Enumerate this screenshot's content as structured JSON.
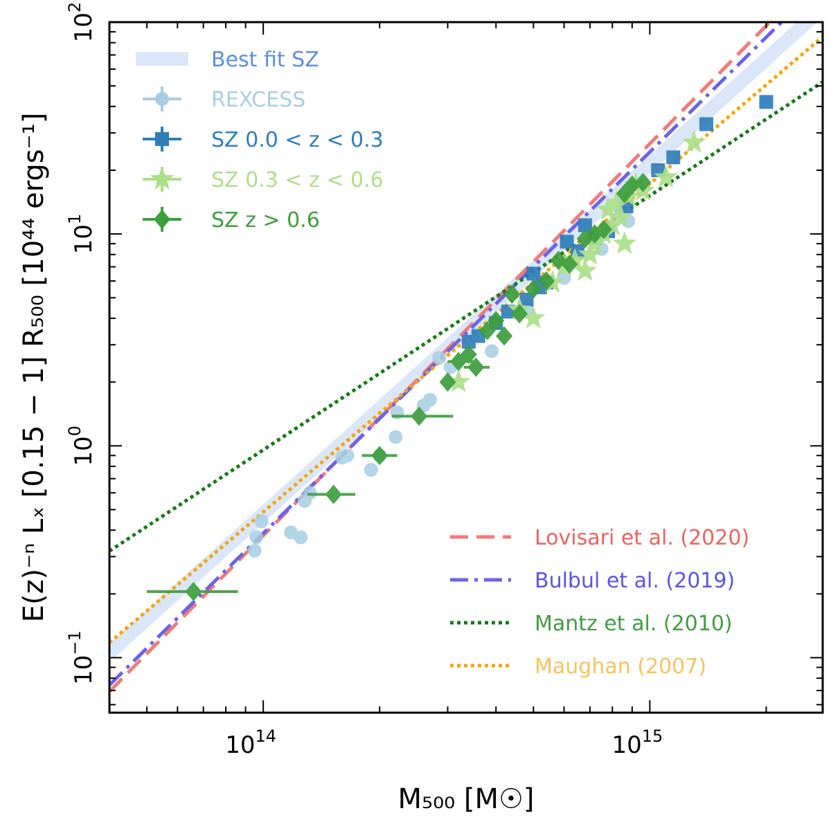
{
  "chart_data": {
    "type": "scatter",
    "xscale": "log",
    "yscale": "log",
    "xlim": [
      40000000000000,
      2800000000000000
    ],
    "ylim": [
      0.055,
      100
    ],
    "xlabel": "M₅₀₀ [M☉]",
    "ylabel": "E(z)⁻ⁿ Lₓ [0.15 − 1] R₅₀₀ [10⁴⁴ ergs⁻¹]",
    "x_ticks": [
      {
        "mantissa": "10",
        "exponent": "14",
        "value": 100000000000000
      },
      {
        "mantissa": "10",
        "exponent": "15",
        "value": 1000000000000000
      }
    ],
    "y_ticks": [
      {
        "mantissa": "10",
        "exponent": "−1",
        "value": 0.1
      },
      {
        "mantissa": "10",
        "exponent": "0",
        "value": 1
      },
      {
        "mantissa": "10",
        "exponent": "1",
        "value": 10
      },
      {
        "mantissa": "10",
        "exponent": "2",
        "value": 100
      }
    ],
    "legend_location": "upper-left and lower-right",
    "fit_lines": [
      {
        "name": "Best fit SZ",
        "color": "#dbe7f8",
        "style": "band",
        "pivot_mass": 500000000000000,
        "norm": 6.8,
        "slope": 1.65
      },
      {
        "name": "Lovisari et al. (2020)",
        "color": "#f27a78",
        "style": "dashed",
        "pivot_mass": 500000000000000,
        "norm": 7.4,
        "slope": 1.85
      },
      {
        "name": "Bulbul et al. (2019)",
        "color": "#6a63e8",
        "style": "dashdot",
        "pivot_mass": 500000000000000,
        "norm": 7.0,
        "slope": 1.8
      },
      {
        "name": "Mantz et al. (2010)",
        "color": "#157a15",
        "style": "dotted",
        "pivot_mass": 500000000000000,
        "norm": 6.6,
        "slope": 1.2
      },
      {
        "name": "Maughan (2007)",
        "color": "#f5a50a",
        "style": "dotted",
        "pivot_mass": 500000000000000,
        "norm": 5.9,
        "slope": 1.55
      }
    ],
    "legend_fit_text_colors": [
      "#f0625f",
      "#5b54e6",
      "#3f9e3f",
      "#f7c35c"
    ],
    "series": [
      {
        "name": "REXCESS",
        "marker": "circle",
        "color": "#a8cde3",
        "points": [
          {
            "x": 95000000000000,
            "y": 0.32
          },
          {
            "x": 96000000000000,
            "y": 0.37
          },
          {
            "x": 99000000000000,
            "y": 0.44
          },
          {
            "x": 118000000000000,
            "y": 0.39
          },
          {
            "x": 125000000000000,
            "y": 0.37
          },
          {
            "x": 128000000000000,
            "y": 0.55
          },
          {
            "x": 132000000000000,
            "y": 0.6
          },
          {
            "x": 160000000000000,
            "y": 0.88
          },
          {
            "x": 165000000000000,
            "y": 0.9
          },
          {
            "x": 190000000000000,
            "y": 0.77
          },
          {
            "x": 200000000000000,
            "y": 0.9
          },
          {
            "x": 220000000000000,
            "y": 1.1
          },
          {
            "x": 222000000000000,
            "y": 1.44
          },
          {
            "x": 260000000000000,
            "y": 1.55
          },
          {
            "x": 270000000000000,
            "y": 1.65
          },
          {
            "x": 285000000000000,
            "y": 2.6
          },
          {
            "x": 305000000000000,
            "y": 2.35
          },
          {
            "x": 390000000000000,
            "y": 2.8
          },
          {
            "x": 480000000000000,
            "y": 4.4
          },
          {
            "x": 600000000000000,
            "y": 6.2
          },
          {
            "x": 750000000000000,
            "y": 8.5
          },
          {
            "x": 880000000000000,
            "y": 11.5
          },
          {
            "x": 840000000000000,
            "y": 13.0
          }
        ]
      },
      {
        "name": "SZ 0.0 < z < 0.3",
        "marker": "square",
        "color": "#2f7ebc",
        "points": [
          {
            "x": 340000000000000,
            "y": 3.1
          },
          {
            "x": 360000000000000,
            "y": 3.3
          },
          {
            "x": 400000000000000,
            "y": 3.8
          },
          {
            "x": 430000000000000,
            "y": 4.3
          },
          {
            "x": 480000000000000,
            "y": 4.9
          },
          {
            "x": 500000000000000,
            "y": 6.5
          },
          {
            "x": 520000000000000,
            "y": 5.6
          },
          {
            "x": 540000000000000,
            "y": 5.9
          },
          {
            "x": 610000000000000,
            "y": 9.2
          },
          {
            "x": 650000000000000,
            "y": 8.3
          },
          {
            "x": 680000000000000,
            "y": 11.0
          },
          {
            "x": 720000000000000,
            "y": 9.6
          },
          {
            "x": 780000000000000,
            "y": 10.3
          },
          {
            "x": 870000000000000,
            "y": 13.5
          },
          {
            "x": 1050000000000000,
            "y": 20.0
          },
          {
            "x": 1150000000000000,
            "y": 23.0
          },
          {
            "x": 1400000000000000,
            "y": 33.0
          },
          {
            "x": 2000000000000000,
            "y": 42.0
          }
        ]
      },
      {
        "name": "SZ 0.3 < z < 0.6",
        "marker": "star",
        "color": "#addf8a",
        "points": [
          {
            "x": 320000000000000,
            "y": 2.0
          },
          {
            "x": 460000000000000,
            "y": 4.4
          },
          {
            "x": 500000000000000,
            "y": 4.0
          },
          {
            "x": 560000000000000,
            "y": 5.9
          },
          {
            "x": 600000000000000,
            "y": 7.0
          },
          {
            "x": 640000000000000,
            "y": 7.5
          },
          {
            "x": 680000000000000,
            "y": 6.7
          },
          {
            "x": 700000000000000,
            "y": 8.0
          },
          {
            "x": 720000000000000,
            "y": 9.0
          },
          {
            "x": 760000000000000,
            "y": 10.0
          },
          {
            "x": 780000000000000,
            "y": 13.0
          },
          {
            "x": 800000000000000,
            "y": 11.0
          },
          {
            "x": 820000000000000,
            "y": 14.0
          },
          {
            "x": 840000000000000,
            "y": 12.0
          },
          {
            "x": 860000000000000,
            "y": 9.0
          },
          {
            "x": 880000000000000,
            "y": 15.0
          },
          {
            "x": 920000000000000,
            "y": 17.0
          },
          {
            "x": 960000000000000,
            "y": 16.0
          },
          {
            "x": 1100000000000000,
            "y": 18.5
          },
          {
            "x": 1300000000000000,
            "y": 27.0
          }
        ]
      },
      {
        "name": "SZ z > 0.6",
        "marker": "diamond",
        "color": "#3d9e3d",
        "points": [
          {
            "x": 66000000000000,
            "y": 0.205,
            "xerr": [
              50000000000000,
              86000000000000
            ]
          },
          {
            "x": 152000000000000,
            "y": 0.59,
            "xerr": [
              130000000000000,
              173000000000000
            ]
          },
          {
            "x": 200000000000000,
            "y": 0.9,
            "xerr": [
              180000000000000,
              222000000000000
            ]
          },
          {
            "x": 253000000000000,
            "y": 1.38,
            "xerr": [
              215000000000000,
              310000000000000
            ]
          },
          {
            "x": 300000000000000,
            "y": 2.0
          },
          {
            "x": 320000000000000,
            "y": 2.5,
            "xerr": [
              300000000000000,
              350000000000000
            ]
          },
          {
            "x": 340000000000000,
            "y": 2.7
          },
          {
            "x": 355000000000000,
            "y": 2.35,
            "xerr": [
              330000000000000,
              385000000000000
            ]
          },
          {
            "x": 380000000000000,
            "y": 3.5
          },
          {
            "x": 400000000000000,
            "y": 3.9
          },
          {
            "x": 420000000000000,
            "y": 3.3
          },
          {
            "x": 440000000000000,
            "y": 5.2
          },
          {
            "x": 460000000000000,
            "y": 4.2
          },
          {
            "x": 500000000000000,
            "y": 5.5
          },
          {
            "x": 540000000000000,
            "y": 6.0
          },
          {
            "x": 580000000000000,
            "y": 7.5
          },
          {
            "x": 620000000000000,
            "y": 7.2
          },
          {
            "x": 680000000000000,
            "y": 9.5
          },
          {
            "x": 720000000000000,
            "y": 10.0
          },
          {
            "x": 760000000000000,
            "y": 10.5
          },
          {
            "x": 860000000000000,
            "y": 15.5
          },
          {
            "x": 900000000000000,
            "y": 17.0
          },
          {
            "x": 960000000000000,
            "y": 17.5
          }
        ]
      }
    ]
  }
}
